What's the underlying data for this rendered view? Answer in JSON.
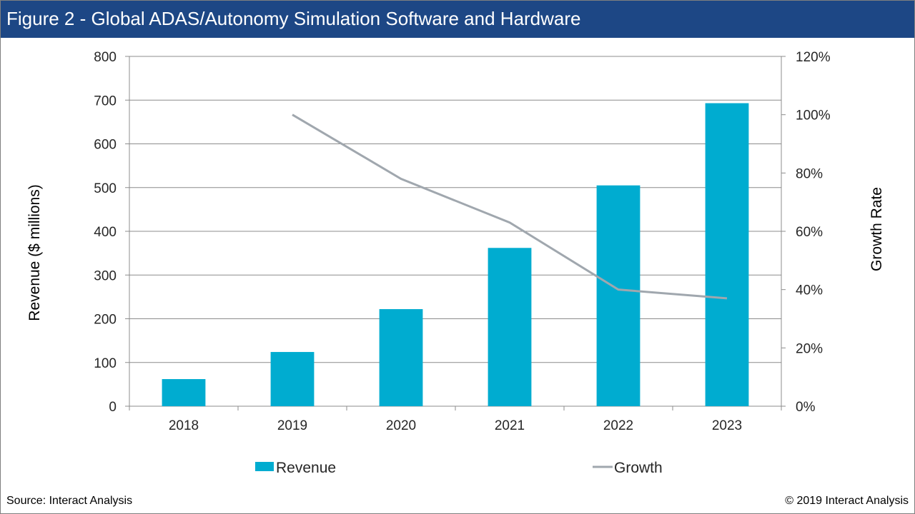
{
  "header": {
    "title": "Figure 2 - Global ADAS/Autonomy Simulation Software and Hardware"
  },
  "footer": {
    "source": "Source: Interact Analysis",
    "copyright": "© 2019 Interact Analysis"
  },
  "colors": {
    "header_bg": "#1d4785",
    "bar": "#00acd0",
    "line": "#a0a7ae",
    "grid": "#8c8c8c"
  },
  "chart_data": {
    "type": "bar",
    "categories": [
      "2018",
      "2019",
      "2020",
      "2021",
      "2022",
      "2023"
    ],
    "series": [
      {
        "name": "Revenue",
        "type": "bar",
        "axis": "left",
        "values": [
          62,
          124,
          222,
          362,
          505,
          693
        ]
      },
      {
        "name": "Growth",
        "type": "line",
        "axis": "right",
        "values": [
          null,
          1.0,
          0.78,
          0.63,
          0.4,
          0.37
        ]
      }
    ],
    "ylabel": "Revenue ($ millions)",
    "y2label": "Growth Rate",
    "ylim": [
      0,
      800
    ],
    "y2lim": [
      0,
      1.2
    ],
    "yticks": [
      "0",
      "100",
      "200",
      "300",
      "400",
      "500",
      "600",
      "700",
      "800"
    ],
    "y2ticks": [
      "0%",
      "20%",
      "40%",
      "60%",
      "80%",
      "100%",
      "120%"
    ],
    "grid": true,
    "legend": "bottom"
  }
}
